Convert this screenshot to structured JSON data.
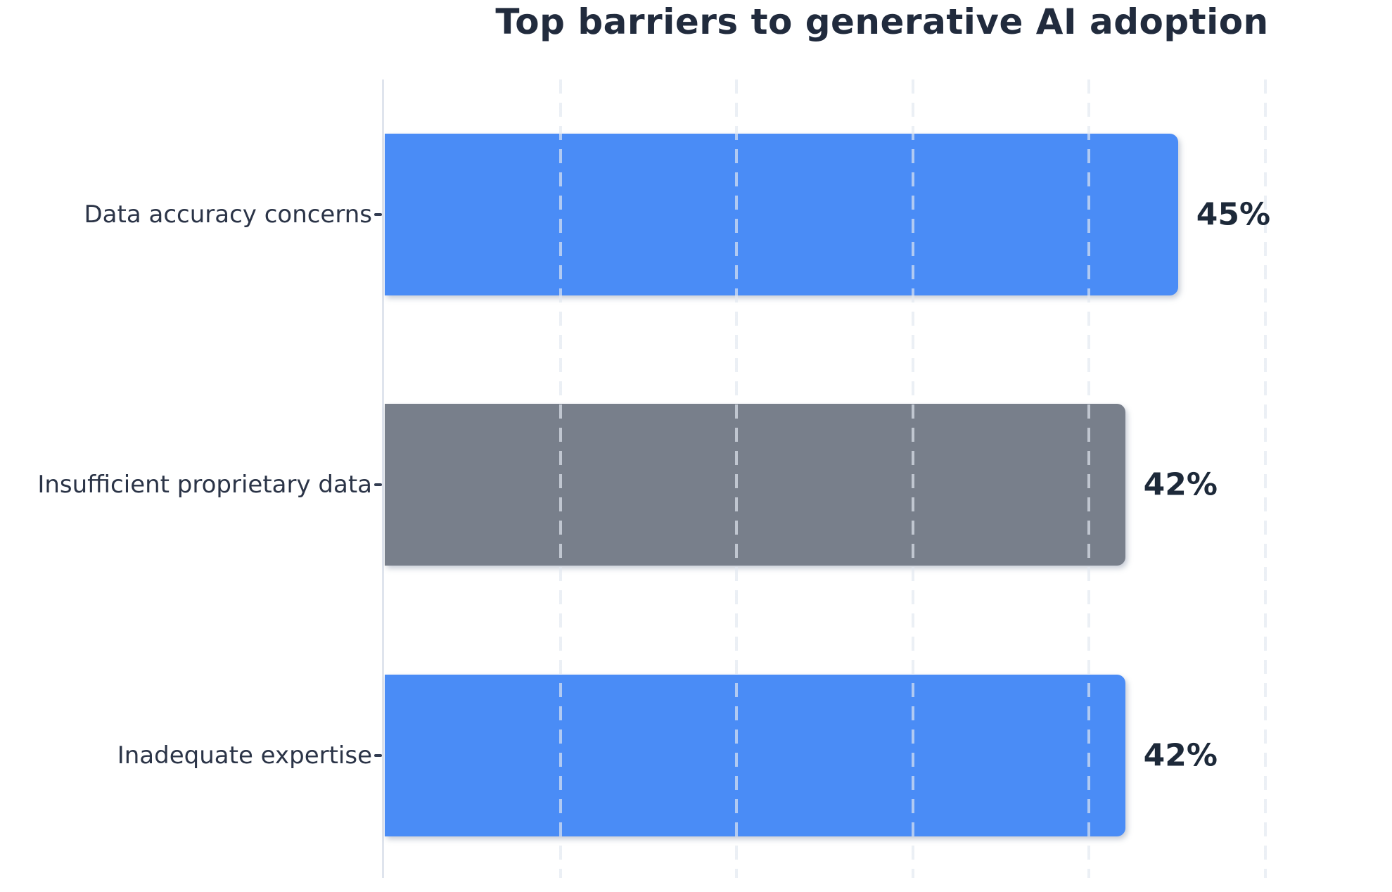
{
  "chart_data": {
    "type": "bar",
    "orientation": "horizontal",
    "title": "Top barriers to generative AI adoption",
    "categories": [
      "Data accuracy concerns",
      "Insufficient proprietary data",
      "Inadequate expertise"
    ],
    "values": [
      45,
      42,
      42
    ],
    "value_labels": [
      "45%",
      "42%",
      "42%"
    ],
    "bar_colors": [
      "#4A8CF6",
      "#787F8B",
      "#4A8CF6"
    ],
    "xlabel": "",
    "ylabel": "",
    "xlim": [
      0,
      56.5
    ],
    "grid_ticks": [
      10,
      20,
      30,
      40,
      50
    ],
    "grid_style": "vertical-dashed",
    "legend": "none",
    "colors": {
      "title_text": "#212B3D",
      "label_text": "#2B3447",
      "value_text": "#1D2939",
      "tick_mark": "#333D52",
      "axis_line": "#DFE4ED",
      "gridline": "rgba(226,232,240,0.68)",
      "background": "#FFFFFF"
    }
  }
}
